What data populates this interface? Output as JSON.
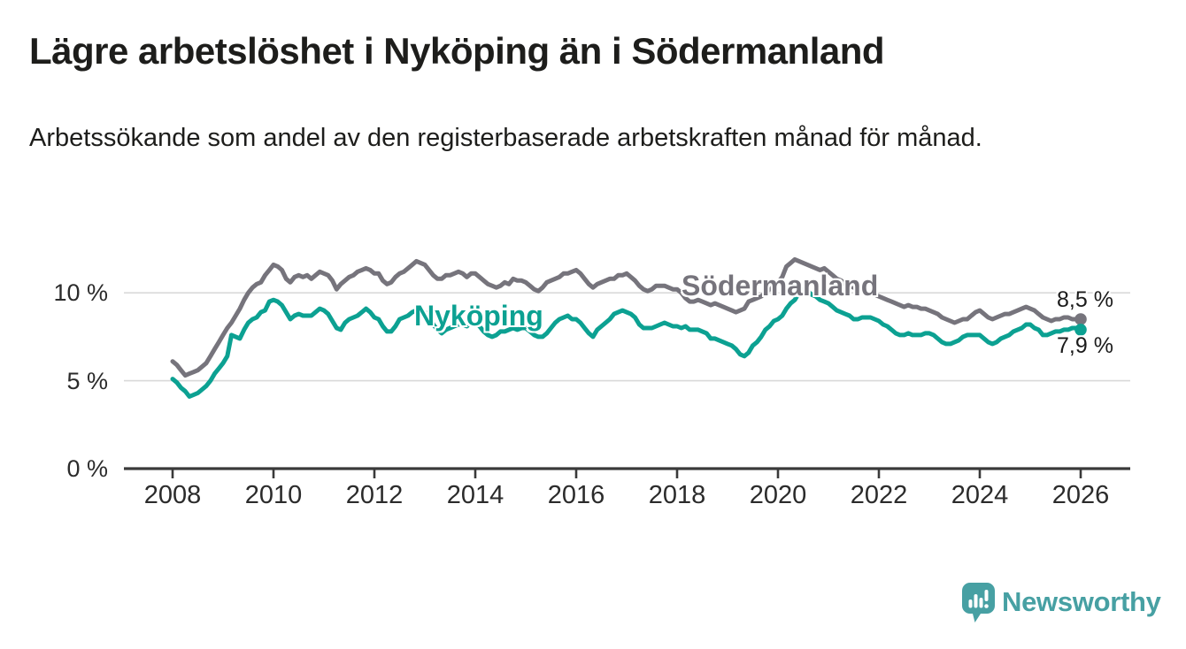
{
  "header": {
    "title": "Lägre arbetslöshet i Nyköping än i Södermanland",
    "subtitle": "Arbetssökande som andel av den registerbaserade arbetskraften månad för månad."
  },
  "chart_data": {
    "type": "line",
    "frequency": "monthly",
    "x_start": "2008-01",
    "x_end": "2026-01",
    "x_tick_labels": [
      "2008",
      "2010",
      "2012",
      "2014",
      "2016",
      "2018",
      "2020",
      "2022",
      "2024",
      "2026"
    ],
    "y_ticks": [
      0,
      5,
      10
    ],
    "y_tick_labels": [
      "0 %",
      "5 %",
      "10 %"
    ],
    "y_gridlines": [
      5,
      10
    ],
    "ylim": [
      0,
      13.5
    ],
    "grid": "horizontal",
    "legend_position": "inline-labels",
    "axis_color": "#3a3a3a",
    "gridline_color": "#d9d9d9",
    "series": [
      {
        "name": "Södermanland",
        "color": "#76747c",
        "end_label": "8,5 %",
        "last_value": 8.5,
        "values": [
          6.1,
          5.9,
          5.6,
          5.3,
          5.4,
          5.5,
          5.6,
          5.8,
          6.0,
          6.4,
          6.8,
          7.2,
          7.6,
          8.0,
          8.3,
          8.7,
          9.1,
          9.6,
          10.0,
          10.3,
          10.5,
          10.6,
          11.0,
          11.3,
          11.6,
          11.5,
          11.3,
          10.8,
          10.6,
          10.9,
          11.0,
          10.9,
          11.0,
          10.8,
          11.0,
          11.2,
          11.1,
          11.0,
          10.7,
          10.2,
          10.5,
          10.7,
          10.9,
          11.0,
          11.2,
          11.3,
          11.4,
          11.3,
          11.1,
          11.1,
          10.7,
          10.5,
          10.6,
          10.9,
          11.1,
          11.2,
          11.4,
          11.6,
          11.8,
          11.7,
          11.6,
          11.3,
          11.0,
          10.8,
          10.8,
          11.0,
          11.0,
          11.1,
          11.2,
          11.1,
          10.9,
          11.1,
          11.1,
          10.9,
          10.7,
          10.5,
          10.4,
          10.3,
          10.4,
          10.6,
          10.5,
          10.8,
          10.7,
          10.7,
          10.6,
          10.4,
          10.2,
          10.1,
          10.3,
          10.6,
          10.7,
          10.8,
          10.9,
          11.1,
          11.1,
          11.2,
          11.3,
          11.1,
          10.8,
          10.5,
          10.3,
          10.5,
          10.6,
          10.7,
          10.8,
          10.8,
          11.0,
          11.0,
          11.1,
          10.9,
          10.7,
          10.4,
          10.2,
          10.1,
          10.2,
          10.4,
          10.4,
          10.4,
          10.3,
          10.2,
          10.2,
          10.0,
          9.7,
          9.5,
          9.5,
          9.6,
          9.5,
          9.4,
          9.3,
          9.4,
          9.3,
          9.2,
          9.1,
          9.0,
          8.9,
          9.0,
          9.1,
          9.5,
          9.6,
          9.7,
          9.8,
          10.0,
          10.2,
          10.4,
          10.6,
          10.9,
          11.5,
          11.7,
          11.9,
          11.8,
          11.7,
          11.6,
          11.5,
          11.4,
          11.3,
          11.4,
          11.2,
          11.0,
          10.8,
          10.7,
          10.5,
          10.4,
          10.3,
          10.2,
          10.1,
          10.0,
          10.0,
          9.9,
          9.8,
          9.7,
          9.6,
          9.5,
          9.4,
          9.3,
          9.2,
          9.3,
          9.2,
          9.2,
          9.1,
          9.1,
          9.0,
          8.9,
          8.8,
          8.6,
          8.5,
          8.4,
          8.3,
          8.4,
          8.5,
          8.5,
          8.7,
          8.9,
          9.0,
          8.8,
          8.6,
          8.5,
          8.6,
          8.7,
          8.8,
          8.8,
          8.9,
          9.0,
          9.1,
          9.2,
          9.1,
          9.0,
          8.8,
          8.6,
          8.5,
          8.4,
          8.5,
          8.5,
          8.6,
          8.6,
          8.5,
          8.5,
          8.5
        ]
      },
      {
        "name": "Nyköping",
        "color": "#0ca192",
        "end_label": "7,9 %",
        "last_value": 7.9,
        "values": [
          5.1,
          4.9,
          4.6,
          4.4,
          4.1,
          4.2,
          4.3,
          4.5,
          4.7,
          5.0,
          5.4,
          5.7,
          6.0,
          6.4,
          7.6,
          7.5,
          7.4,
          7.9,
          8.3,
          8.5,
          8.6,
          8.9,
          9.0,
          9.5,
          9.6,
          9.5,
          9.3,
          8.9,
          8.5,
          8.7,
          8.8,
          8.7,
          8.7,
          8.7,
          8.9,
          9.1,
          9.0,
          8.8,
          8.4,
          8.0,
          7.9,
          8.3,
          8.5,
          8.6,
          8.7,
          8.9,
          9.1,
          8.9,
          8.6,
          8.5,
          8.1,
          7.8,
          7.8,
          8.1,
          8.5,
          8.6,
          8.7,
          8.9,
          9.0,
          8.9,
          8.9,
          8.7,
          8.2,
          7.9,
          7.7,
          7.9,
          8.0,
          8.1,
          8.2,
          8.2,
          8.1,
          8.3,
          8.3,
          8.1,
          7.8,
          7.6,
          7.5,
          7.6,
          7.8,
          7.8,
          7.9,
          8.0,
          7.9,
          8.0,
          8.0,
          7.8,
          7.6,
          7.5,
          7.5,
          7.7,
          8.0,
          8.3,
          8.5,
          8.6,
          8.7,
          8.5,
          8.5,
          8.3,
          8.0,
          7.7,
          7.5,
          7.9,
          8.1,
          8.3,
          8.5,
          8.8,
          8.9,
          9.0,
          8.9,
          8.8,
          8.6,
          8.2,
          8.0,
          8.0,
          8.0,
          8.1,
          8.2,
          8.3,
          8.2,
          8.1,
          8.1,
          8.0,
          8.1,
          7.9,
          7.9,
          7.9,
          7.8,
          7.7,
          7.4,
          7.4,
          7.3,
          7.2,
          7.1,
          7.0,
          6.8,
          6.5,
          6.4,
          6.6,
          7.0,
          7.2,
          7.5,
          7.9,
          8.1,
          8.4,
          8.5,
          8.7,
          9.1,
          9.4,
          9.6,
          10.0,
          10.2,
          10.1,
          9.9,
          9.8,
          9.6,
          9.5,
          9.4,
          9.2,
          9.0,
          8.9,
          8.8,
          8.7,
          8.5,
          8.5,
          8.6,
          8.6,
          8.6,
          8.5,
          8.4,
          8.2,
          8.1,
          7.9,
          7.7,
          7.6,
          7.6,
          7.7,
          7.6,
          7.6,
          7.6,
          7.7,
          7.7,
          7.6,
          7.4,
          7.2,
          7.1,
          7.1,
          7.2,
          7.3,
          7.5,
          7.6,
          7.6,
          7.6,
          7.6,
          7.4,
          7.2,
          7.1,
          7.2,
          7.4,
          7.5,
          7.6,
          7.8,
          7.9,
          8.0,
          8.2,
          8.2,
          8.0,
          7.9,
          7.6,
          7.6,
          7.7,
          7.8,
          7.8,
          7.9,
          7.9,
          8.0,
          8.0,
          7.9
        ]
      }
    ]
  },
  "logo": {
    "text": "Newsworthy",
    "color": "#47a0a3",
    "icon": "bar-chart-speech-bubble-icon"
  }
}
